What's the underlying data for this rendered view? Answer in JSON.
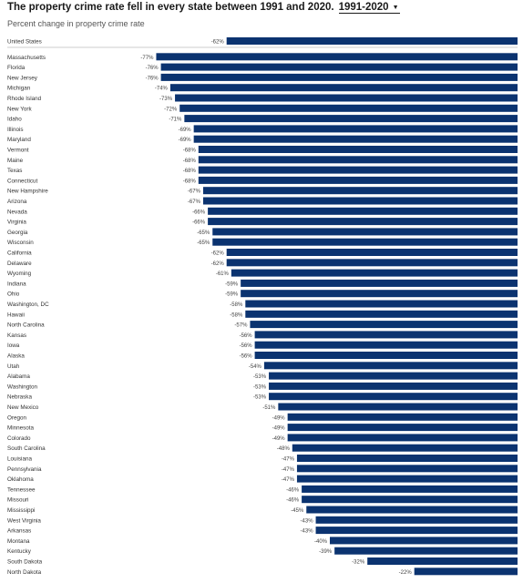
{
  "header": {
    "title": "The property crime rate fell in every state between 1991 and 2020.",
    "period_selected": "1991-2020",
    "subtitle": "Percent change in property crime rate"
  },
  "colors": {
    "bar": "#0b3370",
    "separator": "#999999",
    "grid": "#eeeeee"
  },
  "chart_data": {
    "type": "bar",
    "orientation": "horizontal",
    "title": "The property crime rate fell in every state between 1991 and 2020.",
    "subtitle": "Percent change in property crime rate",
    "xlabel": "",
    "ylabel": "",
    "xlim": [
      -100,
      0
    ],
    "value_suffix": "%",
    "grid": false,
    "legend": "none",
    "categories": [
      "United States",
      "Massachusetts",
      "Florida",
      "New Jersey",
      "Michigan",
      "Rhode Island",
      "New York",
      "Idaho",
      "Illinois",
      "Maryland",
      "Vermont",
      "Maine",
      "Texas",
      "Connecticut",
      "New Hampshire",
      "Arizona",
      "Nevada",
      "Virginia",
      "Georgia",
      "Wisconsin",
      "California",
      "Delaware",
      "Wyoming",
      "Indiana",
      "Ohio",
      "Washington, DC",
      "Hawaii",
      "North Carolina",
      "Kansas",
      "Iowa",
      "Alaska",
      "Utah",
      "Alabama",
      "Washington",
      "Nebraska",
      "New Mexico",
      "Oregon",
      "Minnesota",
      "Colorado",
      "South Carolina",
      "Louisiana",
      "Pennsylvania",
      "Oklahoma",
      "Tennessee",
      "Missouri",
      "Mississippi",
      "West Virginia",
      "Arkansas",
      "Montana",
      "Kentucky",
      "South Dakota",
      "North Dakota"
    ],
    "values": [
      -62,
      -77,
      -76,
      -76,
      -74,
      -73,
      -72,
      -71,
      -69,
      -69,
      -68,
      -68,
      -68,
      -68,
      -67,
      -67,
      -66,
      -66,
      -65,
      -65,
      -62,
      -62,
      -61,
      -59,
      -59,
      -58,
      -58,
      -57,
      -56,
      -56,
      -56,
      -54,
      -53,
      -53,
      -53,
      -51,
      -49,
      -49,
      -49,
      -48,
      -47,
      -47,
      -47,
      -46,
      -46,
      -45,
      -43,
      -43,
      -40,
      -39,
      -32,
      -22
    ]
  }
}
